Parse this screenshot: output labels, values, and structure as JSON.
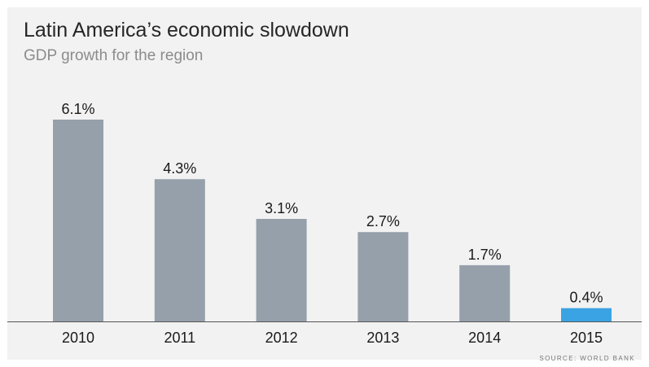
{
  "chart_data": {
    "type": "bar",
    "title": "Latin America’s economic slowdown",
    "subtitle": "GDP growth for the region",
    "categories": [
      "2010",
      "2011",
      "2012",
      "2013",
      "2014",
      "2015"
    ],
    "values": [
      6.1,
      4.3,
      3.1,
      2.7,
      1.7,
      0.4
    ],
    "value_labels": [
      "6.1%",
      "4.3%",
      "3.1%",
      "2.7%",
      "1.7%",
      "0.4%"
    ],
    "xlabel": "",
    "ylabel": "",
    "ylim": [
      0,
      6.1
    ],
    "grid": false,
    "source": "SOURCE: WORLD BANK",
    "colors": {
      "bar": "#95a0ab",
      "highlight_bar": "#3aa3e3",
      "axis": "#555555"
    },
    "highlight_index": 5
  }
}
